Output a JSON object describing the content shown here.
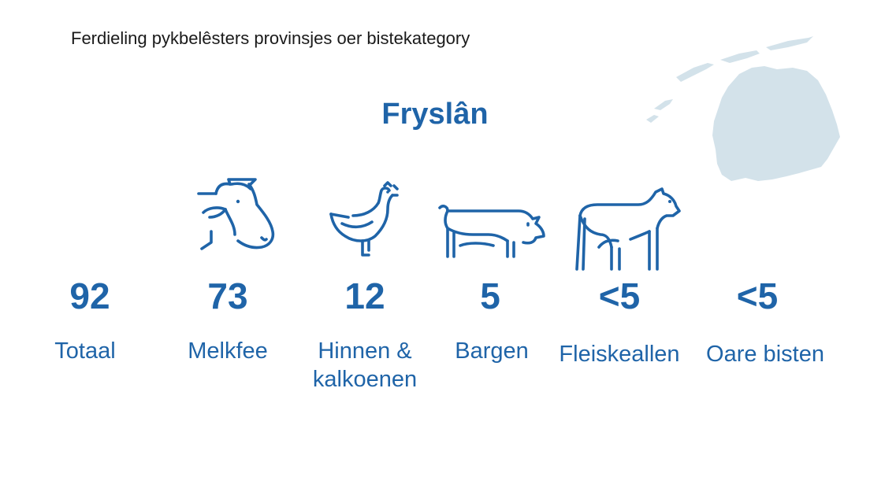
{
  "page_title": "Ferdieling pykbelêsters provinsjes oer bistekategory",
  "province": "Fryslân",
  "colors": {
    "accent": "#1f64a8",
    "map": "#d3e2ea",
    "title": "#1a1a1a"
  },
  "categories": [
    {
      "value": "92",
      "label": "Totaal",
      "icon": "none"
    },
    {
      "value": "73",
      "label": "Melkfee",
      "icon": "cow-head-icon"
    },
    {
      "value": "12",
      "label": "Hinnen & kalkoenen",
      "icon": "chicken-icon"
    },
    {
      "value": "5",
      "label": "Bargen",
      "icon": "pig-icon"
    },
    {
      "value": "<5",
      "label": "Fleiskeallen",
      "icon": "calf-icon"
    },
    {
      "value": "<5",
      "label": "Oare bisten",
      "icon": "none"
    }
  ]
}
